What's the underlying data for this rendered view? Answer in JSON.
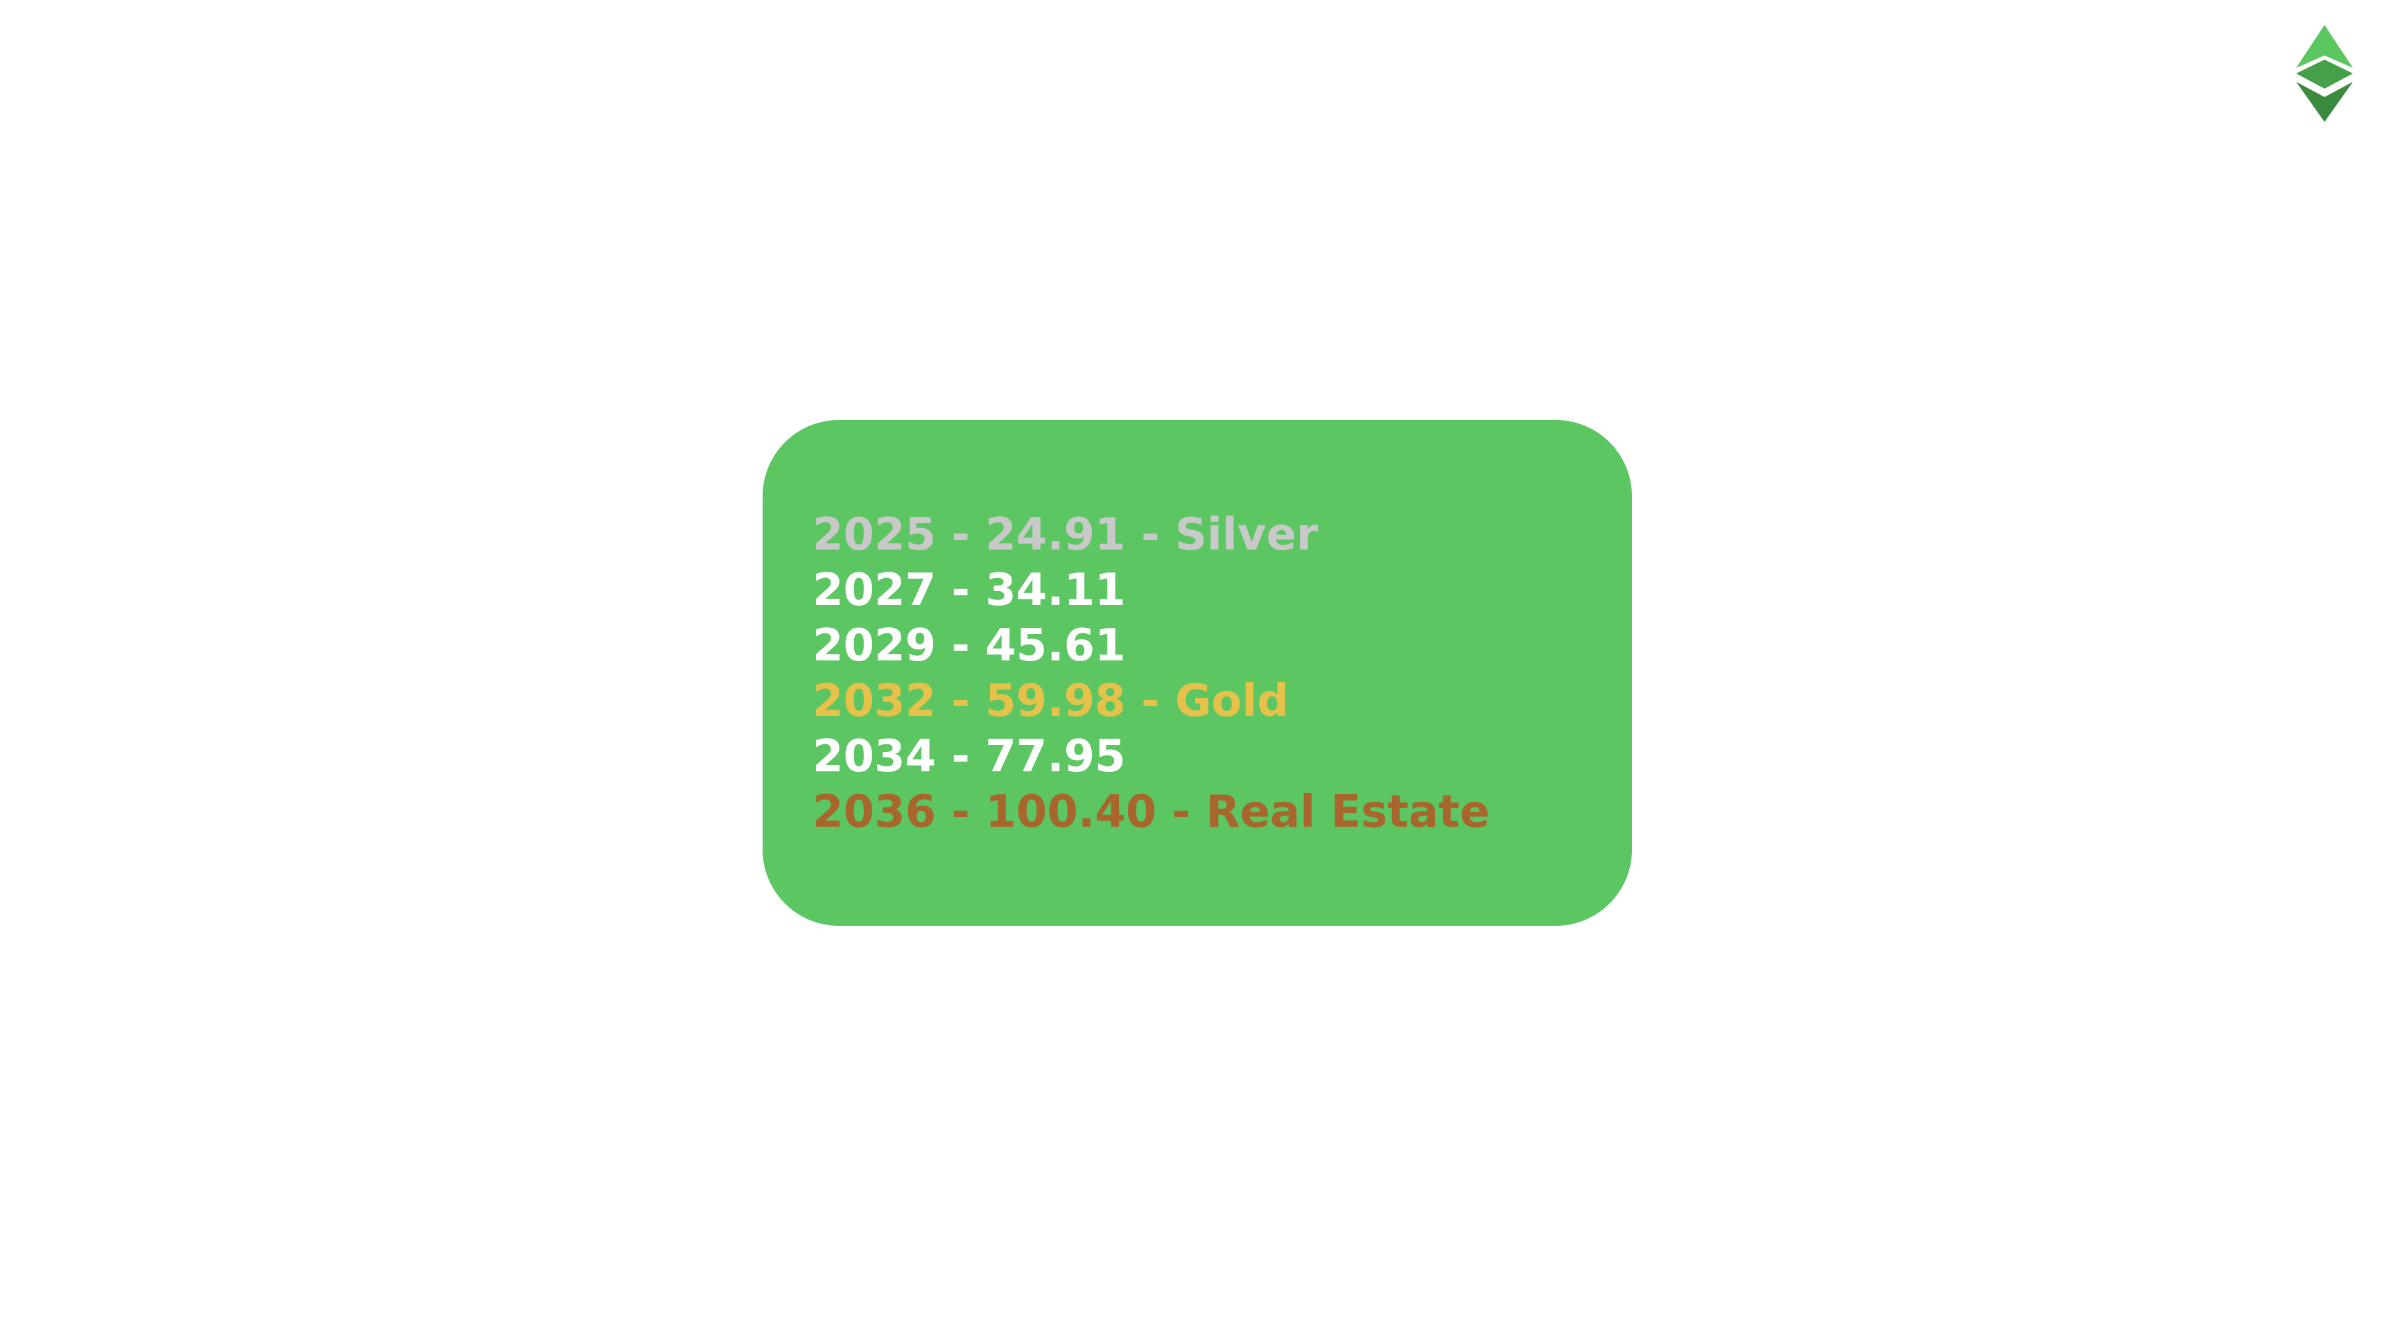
{
  "logo": {
    "icon": "ethereum-classic-logo-icon",
    "colors": {
      "top": "#5cc660",
      "middle": "#46a04a",
      "bottom": "#3b8b3f"
    }
  },
  "card": {
    "background": "#5cc663",
    "lines": [
      {
        "text": "2025 - 24.91 - Silver",
        "color": "#c9c9c9"
      },
      {
        "text": "2027 - 34.11",
        "color": "#ffffff"
      },
      {
        "text": "2029 - 45.61",
        "color": "#ffffff"
      },
      {
        "text": "2032 - 59.98 - Gold",
        "color": "#e6c24a"
      },
      {
        "text": "2034 - 77.95",
        "color": "#ffffff"
      },
      {
        "text": "2036 - 100.40 - Real Estate",
        "color": "#a8652c"
      }
    ]
  }
}
